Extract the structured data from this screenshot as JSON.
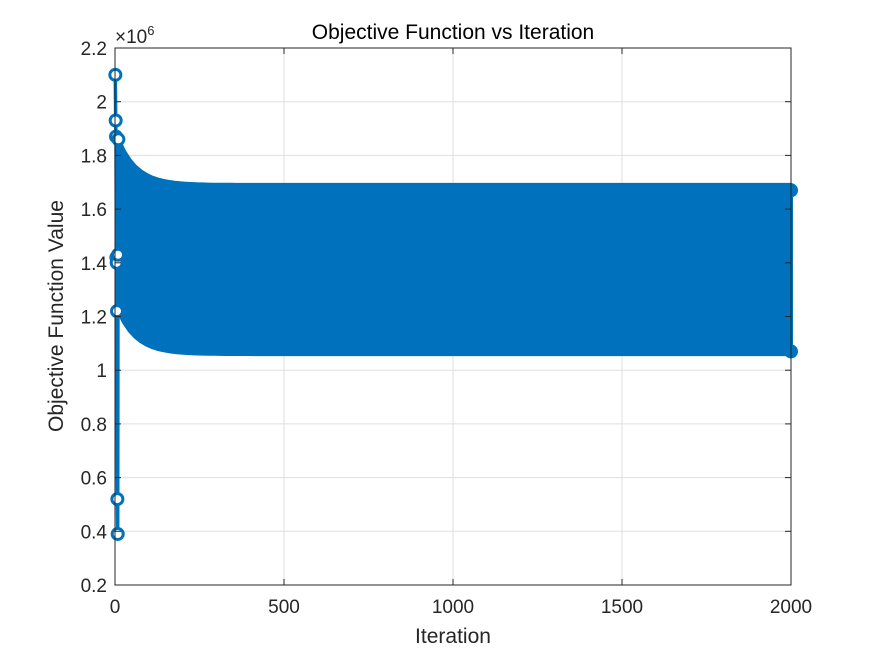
{
  "chart_data": {
    "type": "line",
    "title": "Objective Function vs Iteration",
    "xlabel": "Iteration",
    "ylabel": "Objective Function Value",
    "y_exponent_label": "×10",
    "y_exponent_power": "6",
    "xlim": [
      0,
      2000
    ],
    "ylim": [
      200000,
      2200000
    ],
    "x_ticks": [
      0,
      500,
      1000,
      1500,
      2000
    ],
    "x_tick_labels": [
      "0",
      "500",
      "1000",
      "1500",
      "2000"
    ],
    "y_ticks": [
      200000,
      400000,
      600000,
      800000,
      1000000,
      1200000,
      1400000,
      1600000,
      1800000,
      2000000,
      2200000
    ],
    "y_tick_labels": [
      "0.2",
      "0.4",
      "0.6",
      "0.8",
      "1",
      "1.2",
      "1.4",
      "1.6",
      "1.8",
      "2",
      "2.2"
    ],
    "grid": true,
    "series_color": "#0072BD",
    "marker": "circle",
    "series": [
      {
        "x": [
          1,
          2,
          3,
          4,
          5,
          6,
          7,
          8,
          9,
          10
        ],
        "values": [
          2100000,
          1930000,
          1870000,
          1420000,
          1400000,
          1220000,
          520000,
          390000,
          1430000,
          1860000
        ]
      }
    ],
    "oscillation_band": {
      "x_start": 10,
      "x_end": 2000,
      "upper_start": 1860000,
      "upper_end": 1690000,
      "lower_start": 1220000,
      "lower_end": 1060000
    },
    "endpoints": [
      {
        "x": 2000,
        "value": 1670000
      },
      {
        "x": 2000,
        "value": 1070000
      }
    ]
  }
}
